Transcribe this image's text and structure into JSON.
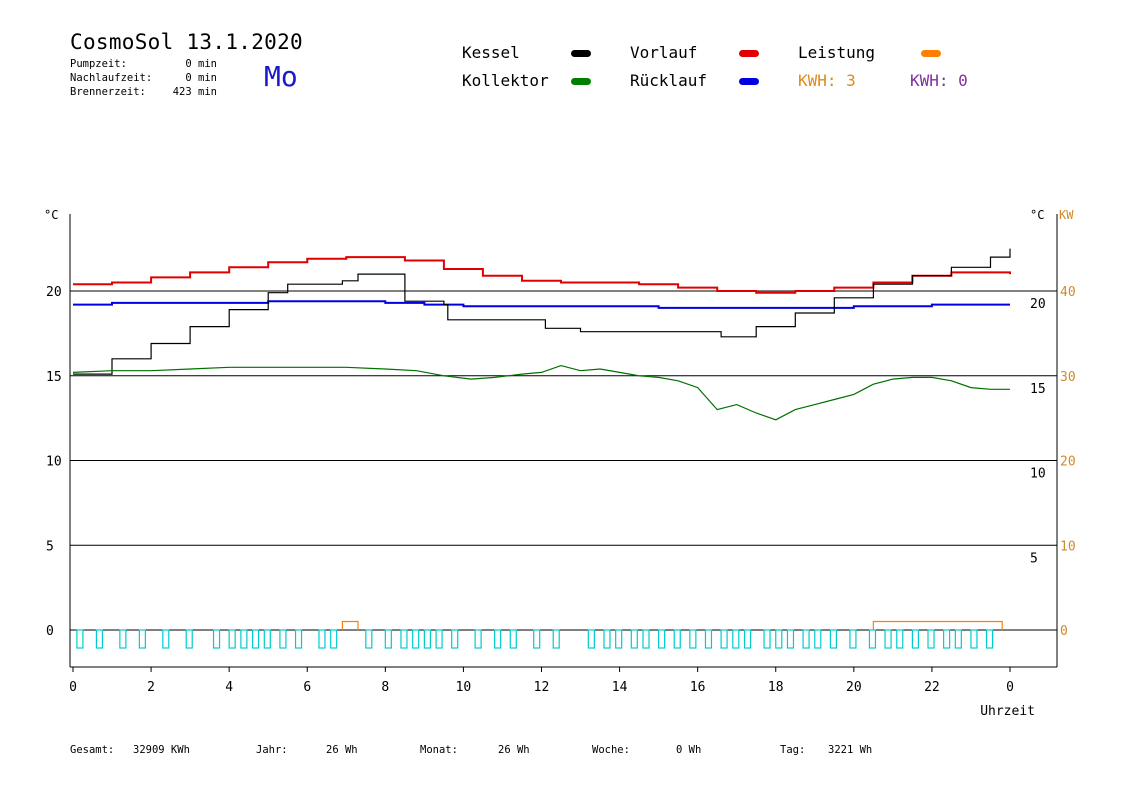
{
  "header": {
    "title": "CosmoSol 13.1.2020",
    "weekday": "Mo",
    "stats": [
      {
        "label": "Pumpzeit:",
        "value": "0 min"
      },
      {
        "label": "Nachlaufzeit:",
        "value": "0 min"
      },
      {
        "label": "Brennerzeit:",
        "value": "423 min"
      }
    ]
  },
  "legend": {
    "kessel": {
      "label": "Kessel",
      "color": "#000000"
    },
    "kollektor": {
      "label": "Kollektor",
      "color": "#008000"
    },
    "vorlauf": {
      "label": "Vorlauf",
      "color": "#e00000"
    },
    "ruecklauf": {
      "label": "Rücklauf",
      "color": "#0000e0"
    },
    "leistung": {
      "label": "Leistung",
      "color": "#ff8000"
    },
    "kwh1": {
      "label": "KWH: 3",
      "color": "#e08a1e"
    },
    "kwh2": {
      "label": "KWH: 0",
      "color": "#8030a0"
    }
  },
  "footer": {
    "gesamt_label": "Gesamt:",
    "gesamt_value": "32909 KWh",
    "jahr_label": "Jahr:",
    "jahr_value": "26 Wh",
    "monat_label": "Monat:",
    "monat_value": "26 Wh",
    "woche_label": "Woche:",
    "woche_value": "0 Wh",
    "tag_label": "Tag:",
    "tag_value": "3221 Wh"
  },
  "chart_data": {
    "type": "line",
    "xlabel": "Uhrzeit",
    "x_ticks": [
      "0",
      "2",
      "4",
      "6",
      "8",
      "10",
      "12",
      "14",
      "16",
      "18",
      "20",
      "22",
      "0"
    ],
    "xlim": [
      0,
      24
    ],
    "left_unit": "°C",
    "right_unit_temp": "°C",
    "right_unit_power": "KW",
    "ylim": [
      -1.8,
      25
    ],
    "left_ticks": [
      "0",
      "5",
      "10",
      "15",
      "20"
    ],
    "right_temp_ticks": [
      "5",
      "10",
      "15",
      "20"
    ],
    "right_power_ticks": [
      "0",
      "10",
      "20",
      "30",
      "40"
    ],
    "grid": "horizontal",
    "colors": {
      "kessel": "#000000",
      "vorlauf": "#e00000",
      "ruecklauf": "#0000e0",
      "kollektor": "#007000",
      "leistung": "#ff8000",
      "pump": "#00cccc"
    },
    "series": [
      {
        "name": "Vorlauf",
        "key": "vorlauf",
        "x": [
          0,
          1,
          2,
          3,
          4,
          5,
          6,
          7,
          7.8,
          8.5,
          9.5,
          10.5,
          11.5,
          12.5,
          13.5,
          14.5,
          15.5,
          16.5,
          17.5,
          18.5,
          19.5,
          20.5,
          21.5,
          22.5,
          23.5,
          24
        ],
        "y": [
          20.4,
          20.5,
          20.8,
          21.1,
          21.4,
          21.7,
          21.9,
          22.0,
          22.0,
          21.8,
          21.3,
          20.9,
          20.6,
          20.5,
          20.5,
          20.4,
          20.2,
          20.0,
          19.9,
          20.0,
          20.2,
          20.5,
          20.9,
          21.1,
          21.1,
          21.0
        ]
      },
      {
        "name": "Rücklauf",
        "key": "ruecklauf",
        "x": [
          0,
          1,
          2,
          3,
          4,
          5,
          6,
          7,
          8,
          9,
          10,
          11,
          12,
          13,
          14,
          15,
          16,
          17,
          18,
          19,
          20,
          21,
          22,
          23,
          24
        ],
        "y": [
          19.2,
          19.3,
          19.3,
          19.3,
          19.3,
          19.4,
          19.4,
          19.4,
          19.3,
          19.2,
          19.1,
          19.1,
          19.1,
          19.1,
          19.1,
          19.0,
          19.0,
          19.0,
          19.0,
          19.0,
          19.1,
          19.1,
          19.2,
          19.2,
          19.2
        ]
      },
      {
        "name": "Kessel",
        "key": "kessel",
        "x": [
          0,
          1,
          2,
          3,
          4,
          5,
          5.5,
          6,
          6.9,
          7.3,
          8.4,
          8.5,
          9.5,
          9.6,
          12.0,
          12.1,
          13.0,
          16.5,
          16.6,
          17.5,
          18.5,
          19.5,
          20.5,
          21.5,
          22.5,
          23.5,
          24
        ],
        "y": [
          15.1,
          16.0,
          16.9,
          17.9,
          18.9,
          19.9,
          20.4,
          20.4,
          20.6,
          21.0,
          21.0,
          19.4,
          19.2,
          18.3,
          18.3,
          17.8,
          17.6,
          17.6,
          17.3,
          17.9,
          18.7,
          19.6,
          20.4,
          20.9,
          21.4,
          22.0,
          22.5
        ]
      },
      {
        "name": "Kollektor",
        "key": "kollektor",
        "x": [
          0,
          1,
          2,
          3,
          4,
          5,
          6,
          7,
          8,
          8.8,
          9.5,
          10.2,
          10.8,
          11.5,
          12.0,
          12.5,
          13.0,
          13.5,
          14.0,
          14.5,
          15.0,
          15.5,
          16.0,
          16.5,
          17.0,
          17.5,
          18.0,
          18.5,
          19.0,
          19.5,
          20.0,
          20.5,
          21.0,
          21.5,
          22.0,
          22.5,
          23.0,
          23.5,
          24
        ],
        "y": [
          15.2,
          15.3,
          15.3,
          15.4,
          15.5,
          15.5,
          15.5,
          15.5,
          15.4,
          15.3,
          15.0,
          14.8,
          14.9,
          15.1,
          15.2,
          15.6,
          15.3,
          15.4,
          15.2,
          15.0,
          14.9,
          14.7,
          14.3,
          13.0,
          13.3,
          12.8,
          12.4,
          13.0,
          13.3,
          13.6,
          13.9,
          14.5,
          14.8,
          14.9,
          14.9,
          14.7,
          14.3,
          14.2,
          14.2
        ]
      }
    ],
    "leistung_on": [
      [
        6.9,
        7.3
      ],
      [
        20.5,
        23.8
      ]
    ],
    "pump_cycles": [
      0.1,
      0.6,
      1.2,
      1.7,
      2.3,
      2.9,
      3.6,
      4.0,
      4.3,
      4.6,
      4.9,
      5.3,
      5.7,
      6.3,
      6.6,
      7.5,
      8.0,
      8.4,
      8.7,
      9.0,
      9.3,
      9.7,
      10.3,
      10.8,
      11.2,
      11.8,
      12.3,
      13.2,
      13.6,
      13.9,
      14.3,
      14.6,
      15.0,
      15.4,
      15.8,
      16.2,
      16.6,
      16.9,
      17.2,
      17.7,
      18.0,
      18.3,
      18.7,
      19.0,
      19.4,
      19.9,
      20.4,
      20.8,
      21.1,
      21.5,
      21.9,
      22.3,
      22.6,
      23.0,
      23.4
    ]
  }
}
